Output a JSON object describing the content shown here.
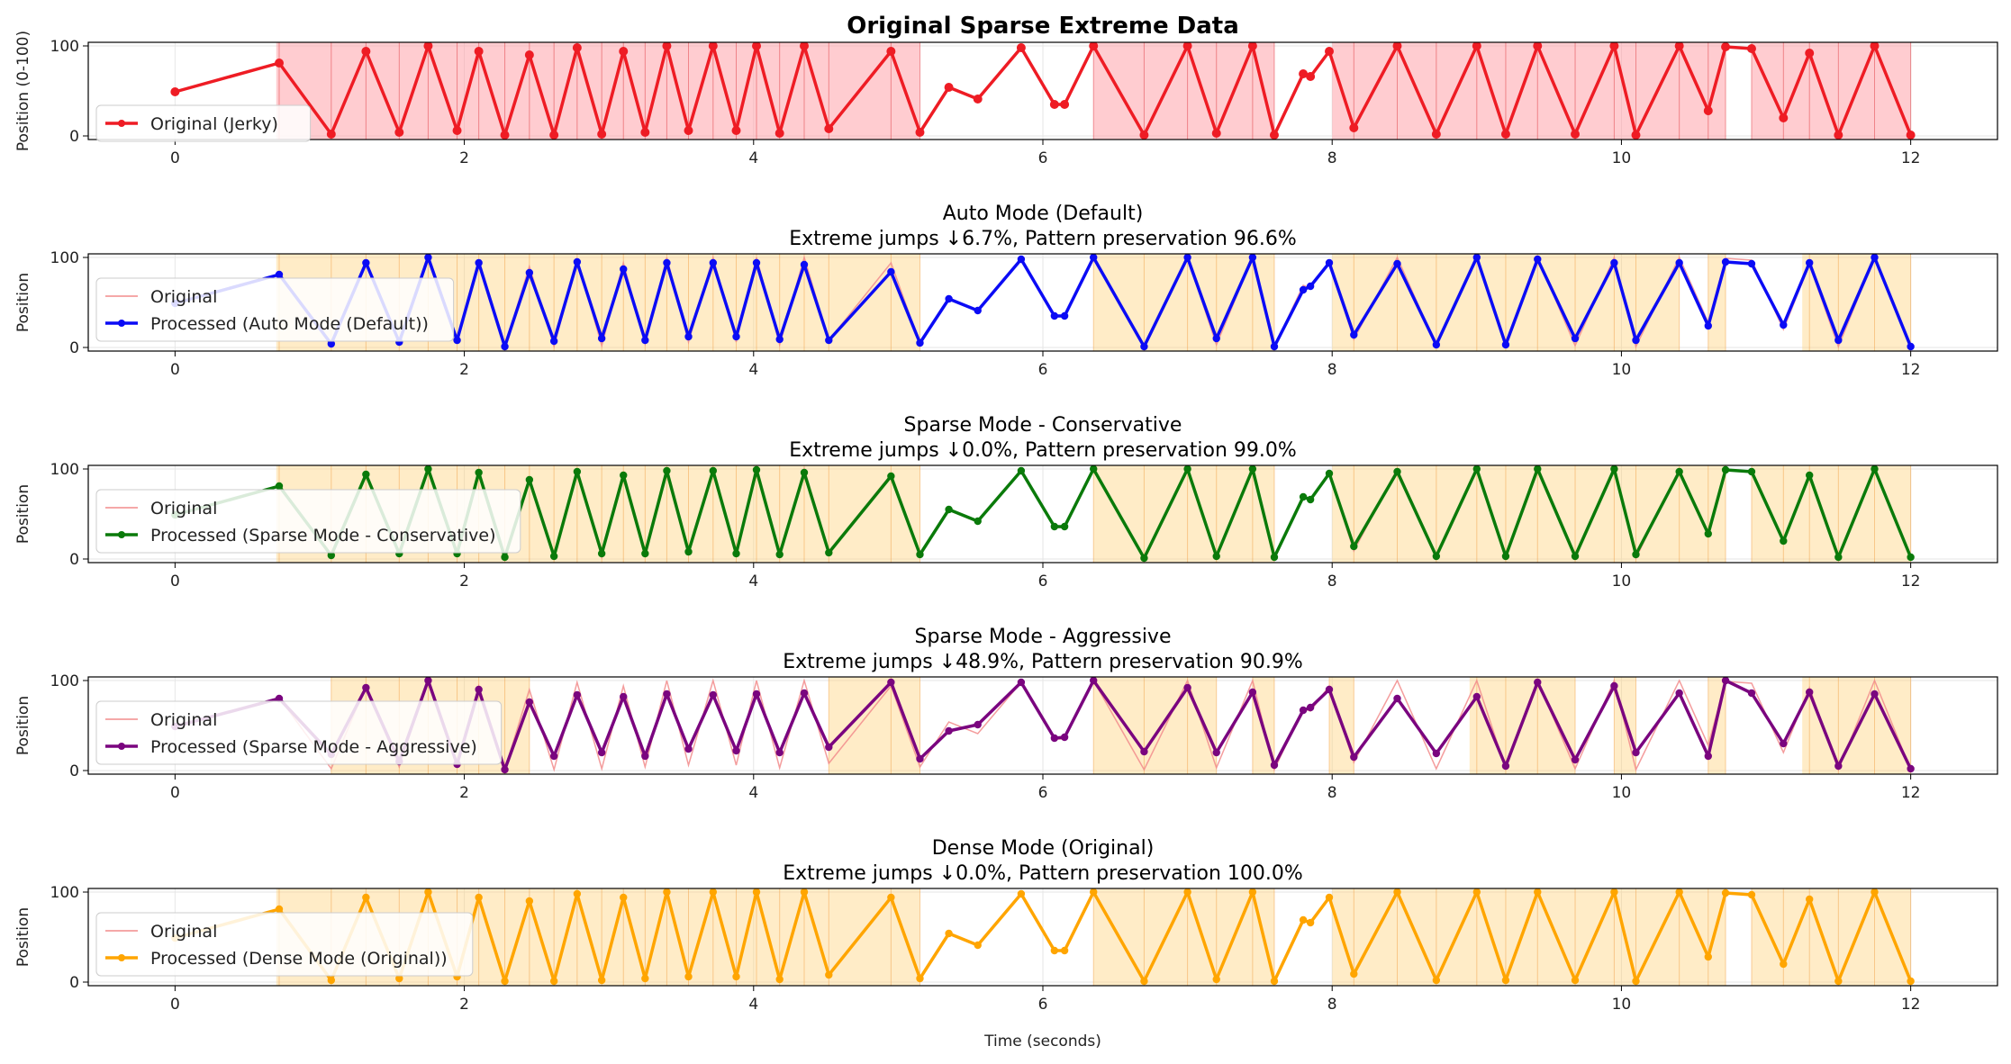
{
  "figure": {
    "xlabel": "Time (seconds)"
  },
  "chart_data": [
    {
      "type": "line",
      "title": "Original Sparse Extreme Data",
      "title_bold": true,
      "ylabel": "Position (0-100)",
      "xlim": [
        -0.6,
        12.6
      ],
      "ylim": [
        -4,
        104
      ],
      "xticks": [
        0,
        2,
        4,
        6,
        8,
        10,
        12
      ],
      "yticks": [
        0,
        100
      ],
      "grid": true,
      "legend": "left",
      "shade_color": "#ff9aa2",
      "spans": [
        [
          0.7,
          5.15
        ],
        [
          6.35,
          7.6
        ],
        [
          8.0,
          10.72
        ],
        [
          10.9,
          12.0
        ]
      ],
      "processed": {
        "name": "Original (Jerky)",
        "color": "#ee1c24",
        "x": [
          0.0,
          0.72,
          1.08,
          1.32,
          1.55,
          1.75,
          1.95,
          2.1,
          2.28,
          2.45,
          2.62,
          2.78,
          2.95,
          3.1,
          3.25,
          3.4,
          3.55,
          3.72,
          3.88,
          4.02,
          4.18,
          4.35,
          4.52,
          4.95,
          5.15,
          5.35,
          5.55,
          5.85,
          6.08,
          6.15,
          6.35,
          6.7,
          7.0,
          7.2,
          7.45,
          7.6,
          7.8,
          7.85,
          7.98,
          8.15,
          8.45,
          8.72,
          9.0,
          9.2,
          9.42,
          9.68,
          9.95,
          10.1,
          10.4,
          10.6,
          10.72,
          10.9,
          11.12,
          11.3,
          11.5,
          11.75,
          12.0
        ],
        "y": [
          49,
          81,
          2,
          94,
          4,
          100,
          6,
          94,
          1,
          90,
          1,
          98,
          2,
          94,
          4,
          100,
          6,
          100,
          6,
          100,
          3,
          100,
          8,
          94,
          4,
          54,
          41,
          98,
          35,
          35,
          100,
          1,
          100,
          3,
          100,
          1,
          69,
          66,
          94,
          9,
          100,
          2,
          100,
          2,
          100,
          2,
          100,
          1,
          100,
          28,
          99,
          97,
          20,
          92,
          1,
          100,
          1
        ]
      }
    },
    {
      "type": "line",
      "title": "Auto Mode (Default)",
      "subtitle": "Extreme jumps ↓6.7%, Pattern preservation 96.6%",
      "ylabel": "Position",
      "xlim": [
        -0.6,
        12.6
      ],
      "ylim": [
        -4,
        104
      ],
      "xticks": [
        0,
        2,
        4,
        6,
        8,
        10,
        12
      ],
      "yticks": [
        0,
        100
      ],
      "grid": true,
      "legend": "left",
      "shade_color": "#ffd27a",
      "spans": [
        [
          0.7,
          5.15
        ],
        [
          6.35,
          7.6
        ],
        [
          8.0,
          10.4
        ],
        [
          10.6,
          10.72
        ],
        [
          11.25,
          12.0
        ]
      ],
      "original": {
        "name": "Original",
        "color": "#f28c8c"
      },
      "processed": {
        "name": "Processed (Auto Mode (Default))",
        "color": "#0b0bf5",
        "x": [
          0.0,
          0.72,
          1.08,
          1.32,
          1.55,
          1.75,
          1.95,
          2.1,
          2.28,
          2.45,
          2.62,
          2.78,
          2.95,
          3.1,
          3.25,
          3.4,
          3.55,
          3.72,
          3.88,
          4.02,
          4.18,
          4.35,
          4.52,
          4.95,
          5.15,
          5.35,
          5.55,
          5.85,
          6.08,
          6.15,
          6.35,
          6.7,
          7.0,
          7.2,
          7.45,
          7.6,
          7.8,
          7.85,
          7.98,
          8.15,
          8.45,
          8.72,
          9.0,
          9.2,
          9.42,
          9.68,
          9.95,
          10.1,
          10.4,
          10.6,
          10.72,
          10.9,
          11.12,
          11.3,
          11.5,
          11.75,
          12.0
        ],
        "y": [
          49,
          81,
          4,
          94,
          6,
          100,
          8,
          94,
          1,
          83,
          7,
          95,
          10,
          87,
          8,
          94,
          12,
          94,
          12,
          94,
          9,
          92,
          8,
          84,
          5,
          54,
          41,
          98,
          35,
          35,
          100,
          1,
          100,
          10,
          100,
          1,
          64,
          68,
          94,
          14,
          93,
          3,
          100,
          3,
          98,
          10,
          94,
          8,
          94,
          24,
          95,
          93,
          25,
          94,
          8,
          100,
          1
        ]
      }
    },
    {
      "type": "line",
      "title": "Sparse Mode - Conservative",
      "subtitle": "Extreme jumps ↓0.0%, Pattern preservation 99.0%",
      "ylabel": "Position",
      "xlim": [
        -0.6,
        12.6
      ],
      "ylim": [
        -4,
        104
      ],
      "xticks": [
        0,
        2,
        4,
        6,
        8,
        10,
        12
      ],
      "yticks": [
        0,
        100
      ],
      "grid": true,
      "legend": "left",
      "shade_color": "#ffd27a",
      "spans": [
        [
          0.7,
          5.15
        ],
        [
          6.35,
          7.6
        ],
        [
          8.0,
          10.72
        ],
        [
          10.9,
          12.0
        ]
      ],
      "original": {
        "name": "Original",
        "color": "#f28c8c"
      },
      "processed": {
        "name": "Processed (Sparse Mode - Conservative)",
        "color": "#0a7a0a",
        "x": [
          0.0,
          0.72,
          1.08,
          1.32,
          1.55,
          1.75,
          1.95,
          2.1,
          2.28,
          2.45,
          2.62,
          2.78,
          2.95,
          3.1,
          3.25,
          3.4,
          3.55,
          3.72,
          3.88,
          4.02,
          4.18,
          4.35,
          4.52,
          4.95,
          5.15,
          5.35,
          5.55,
          5.85,
          6.08,
          6.15,
          6.35,
          6.7,
          7.0,
          7.2,
          7.45,
          7.6,
          7.8,
          7.85,
          7.98,
          8.15,
          8.45,
          8.72,
          9.0,
          9.2,
          9.42,
          9.68,
          9.95,
          10.1,
          10.4,
          10.6,
          10.72,
          10.9,
          11.12,
          11.3,
          11.5,
          11.75,
          12.0
        ],
        "y": [
          49,
          81,
          4,
          94,
          6,
          100,
          6,
          96,
          2,
          88,
          3,
          97,
          6,
          93,
          6,
          98,
          8,
          98,
          6,
          99,
          5,
          96,
          7,
          92,
          5,
          55,
          42,
          98,
          36,
          36,
          100,
          1,
          100,
          3,
          100,
          2,
          69,
          66,
          95,
          14,
          97,
          3,
          100,
          3,
          100,
          3,
          100,
          5,
          97,
          28,
          99,
          97,
          20,
          93,
          2,
          100,
          2
        ]
      }
    },
    {
      "type": "line",
      "title": "Sparse Mode - Aggressive",
      "subtitle": "Extreme jumps ↓48.9%, Pattern preservation 90.9%",
      "ylabel": "Position",
      "xlim": [
        -0.6,
        12.6
      ],
      "ylim": [
        -4,
        104
      ],
      "xticks": [
        0,
        2,
        4,
        6,
        8,
        10,
        12
      ],
      "yticks": [
        0,
        100
      ],
      "grid": true,
      "legend": "left",
      "shade_color": "#ffd27a",
      "spans": [
        [
          1.08,
          2.45
        ],
        [
          4.52,
          5.15
        ],
        [
          6.35,
          7.2
        ],
        [
          7.45,
          7.6
        ],
        [
          7.98,
          8.15
        ],
        [
          8.95,
          9.68
        ],
        [
          9.95,
          10.1
        ],
        [
          10.6,
          10.72
        ],
        [
          11.25,
          12.0
        ]
      ],
      "original": {
        "name": "Original",
        "color": "#f28c8c"
      },
      "processed": {
        "name": "Processed (Sparse Mode - Aggressive)",
        "color": "#7a057f",
        "x": [
          0.0,
          0.72,
          1.08,
          1.32,
          1.55,
          1.75,
          1.95,
          2.1,
          2.28,
          2.45,
          2.62,
          2.78,
          2.95,
          3.1,
          3.25,
          3.4,
          3.55,
          3.72,
          3.88,
          4.02,
          4.18,
          4.35,
          4.52,
          4.95,
          5.15,
          5.35,
          5.55,
          5.85,
          6.08,
          6.15,
          6.35,
          6.7,
          7.0,
          7.2,
          7.45,
          7.6,
          7.8,
          7.85,
          7.98,
          8.15,
          8.45,
          8.72,
          9.0,
          9.2,
          9.42,
          9.68,
          9.95,
          10.1,
          10.4,
          10.6,
          10.72,
          10.9,
          11.12,
          11.3,
          11.5,
          11.75,
          12.0
        ],
        "y": [
          49,
          80,
          18,
          92,
          10,
          100,
          7,
          90,
          1,
          76,
          16,
          84,
          20,
          82,
          16,
          85,
          24,
          84,
          22,
          85,
          20,
          86,
          26,
          98,
          13,
          44,
          51,
          98,
          36,
          37,
          100,
          21,
          92,
          20,
          87,
          6,
          67,
          70,
          90,
          15,
          80,
          19,
          82,
          5,
          98,
          12,
          94,
          20,
          86,
          16,
          100,
          86,
          30,
          87,
          5,
          85,
          2
        ]
      }
    },
    {
      "type": "line",
      "title": "Dense Mode (Original)",
      "subtitle": "Extreme jumps ↓0.0%, Pattern preservation 100.0%",
      "ylabel": "Position",
      "xlim": [
        -0.6,
        12.6
      ],
      "ylim": [
        -4,
        104
      ],
      "xticks": [
        0,
        2,
        4,
        6,
        8,
        10,
        12
      ],
      "yticks": [
        0,
        100
      ],
      "grid": true,
      "legend": "left",
      "shade_color": "#ffd27a",
      "spans": [
        [
          0.7,
          5.15
        ],
        [
          6.35,
          7.6
        ],
        [
          8.0,
          10.72
        ],
        [
          10.9,
          12.0
        ]
      ],
      "original": {
        "name": "Original",
        "color": "#f28c8c"
      },
      "processed": {
        "name": "Processed (Dense Mode (Original))",
        "color": "#ffa500",
        "x": [
          0.0,
          0.72,
          1.08,
          1.32,
          1.55,
          1.75,
          1.95,
          2.1,
          2.28,
          2.45,
          2.62,
          2.78,
          2.95,
          3.1,
          3.25,
          3.4,
          3.55,
          3.72,
          3.88,
          4.02,
          4.18,
          4.35,
          4.52,
          4.95,
          5.15,
          5.35,
          5.55,
          5.85,
          6.08,
          6.15,
          6.35,
          6.7,
          7.0,
          7.2,
          7.45,
          7.6,
          7.8,
          7.85,
          7.98,
          8.15,
          8.45,
          8.72,
          9.0,
          9.2,
          9.42,
          9.68,
          9.95,
          10.1,
          10.4,
          10.6,
          10.72,
          10.9,
          11.12,
          11.3,
          11.5,
          11.75,
          12.0
        ],
        "y": [
          49,
          81,
          2,
          94,
          4,
          100,
          6,
          94,
          1,
          90,
          1,
          98,
          2,
          94,
          4,
          100,
          6,
          100,
          6,
          100,
          3,
          100,
          8,
          94,
          4,
          54,
          41,
          98,
          35,
          35,
          100,
          1,
          100,
          3,
          100,
          1,
          69,
          66,
          94,
          9,
          100,
          2,
          100,
          2,
          100,
          2,
          100,
          1,
          100,
          28,
          99,
          97,
          20,
          92,
          1,
          100,
          1
        ]
      }
    }
  ]
}
